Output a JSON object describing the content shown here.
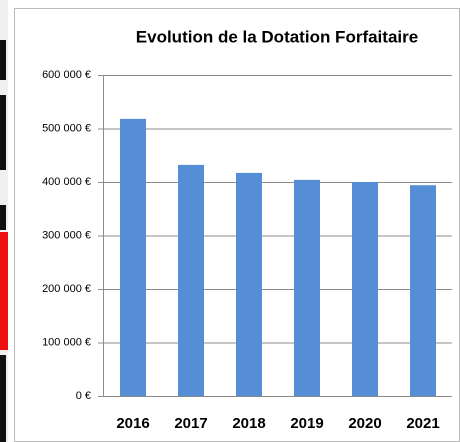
{
  "chart_data": {
    "type": "bar",
    "title": "Evolution de la Dotation Forfaitaire",
    "categories": [
      "2016",
      "2017",
      "2018",
      "2019",
      "2020",
      "2021"
    ],
    "values": [
      518000,
      432000,
      417000,
      404000,
      400000,
      394000
    ],
    "color": "#558ed5",
    "ylim": [
      0,
      600000
    ],
    "yticks": [
      {
        "value": 0,
        "label": "0 €"
      },
      {
        "value": 100000,
        "label": "100 000 €"
      },
      {
        "value": 200000,
        "label": "200 000 €"
      },
      {
        "value": 300000,
        "label": "300 000 €"
      },
      {
        "value": 400000,
        "label": "400 000 €"
      },
      {
        "value": 500000,
        "label": "500 000 €"
      },
      {
        "value": 600000,
        "label": "600 000 €"
      }
    ],
    "grid": true
  }
}
